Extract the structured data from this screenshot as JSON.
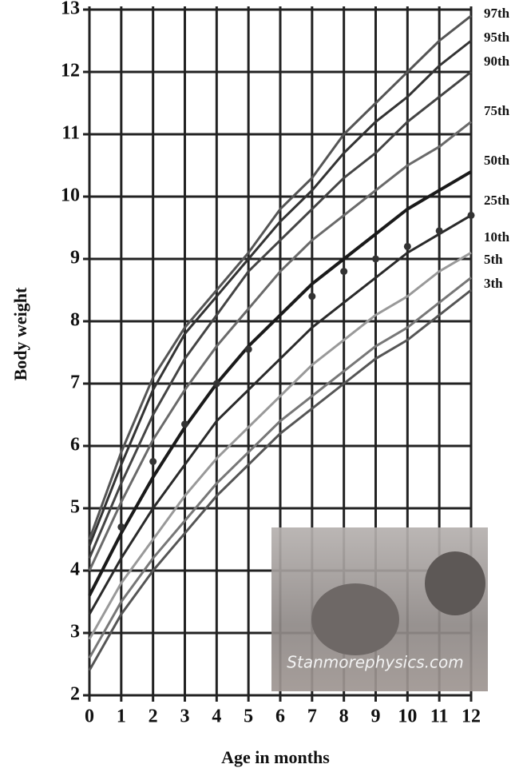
{
  "chart_data": {
    "type": "line",
    "xlabel": "Age in months",
    "ylabel": "Body weight",
    "x": [
      0,
      1,
      2,
      3,
      4,
      5,
      6,
      7,
      8,
      9,
      10,
      11,
      12
    ],
    "xlim": [
      0,
      12
    ],
    "xticks": [
      0,
      1,
      2,
      3,
      4,
      5,
      6,
      7,
      8,
      9,
      10,
      11,
      12
    ],
    "ylim": [
      2,
      13
    ],
    "yticks": [
      2,
      3,
      4,
      5,
      6,
      7,
      8,
      9,
      10,
      11,
      12,
      13
    ],
    "grid": true,
    "series": [
      {
        "name": "97th",
        "color": "#555555",
        "values": [
          4.5,
          5.9,
          7.1,
          7.9,
          8.5,
          9.1,
          9.8,
          10.3,
          11.0,
          11.5,
          12.0,
          12.5,
          12.9
        ]
      },
      {
        "name": "95th",
        "color": "#333333",
        "values": [
          4.4,
          5.7,
          6.9,
          7.8,
          8.4,
          9.0,
          9.6,
          10.1,
          10.7,
          11.2,
          11.6,
          12.1,
          12.5
        ]
      },
      {
        "name": "90th",
        "color": "#444444",
        "values": [
          4.2,
          5.4,
          6.5,
          7.4,
          8.1,
          8.8,
          9.3,
          9.8,
          10.3,
          10.7,
          11.2,
          11.6,
          12.0
        ]
      },
      {
        "name": "75th",
        "color": "#6a6a6a",
        "values": [
          4.0,
          5.1,
          6.1,
          6.9,
          7.6,
          8.2,
          8.8,
          9.3,
          9.7,
          10.1,
          10.5,
          10.8,
          11.2
        ]
      },
      {
        "name": "50th",
        "color": "#1a1a1a",
        "values": [
          3.6,
          4.6,
          5.5,
          6.3,
          7.0,
          7.6,
          8.1,
          8.6,
          9.0,
          9.4,
          9.8,
          10.1,
          10.4
        ]
      },
      {
        "name": "25th",
        "color": "#2a2a2a",
        "values": [
          3.3,
          4.2,
          5.0,
          5.7,
          6.4,
          6.9,
          7.4,
          7.9,
          8.3,
          8.7,
          9.1,
          9.4,
          9.7
        ]
      },
      {
        "name": "10th",
        "color": "#999999",
        "values": [
          2.9,
          3.8,
          4.5,
          5.2,
          5.8,
          6.3,
          6.8,
          7.3,
          7.7,
          8.1,
          8.4,
          8.8,
          9.1
        ]
      },
      {
        "name": "5th",
        "color": "#777777",
        "values": [
          2.6,
          3.5,
          4.2,
          4.8,
          5.4,
          5.9,
          6.4,
          6.8,
          7.2,
          7.6,
          7.9,
          8.3,
          8.7
        ]
      },
      {
        "name": "3th",
        "color": "#555555",
        "values": [
          2.4,
          3.3,
          4.0,
          4.6,
          5.2,
          5.7,
          6.2,
          6.6,
          7.0,
          7.4,
          7.7,
          8.1,
          8.5
        ]
      }
    ],
    "measurements": {
      "x": [
        1,
        2,
        3,
        4,
        5,
        7,
        8,
        9,
        10,
        11,
        12
      ],
      "y": [
        4.7,
        5.75,
        6.35,
        7.0,
        7.55,
        8.4,
        8.8,
        9.0,
        9.2,
        9.45,
        9.7
      ]
    },
    "watermark": "Stanmorephysics.com"
  }
}
